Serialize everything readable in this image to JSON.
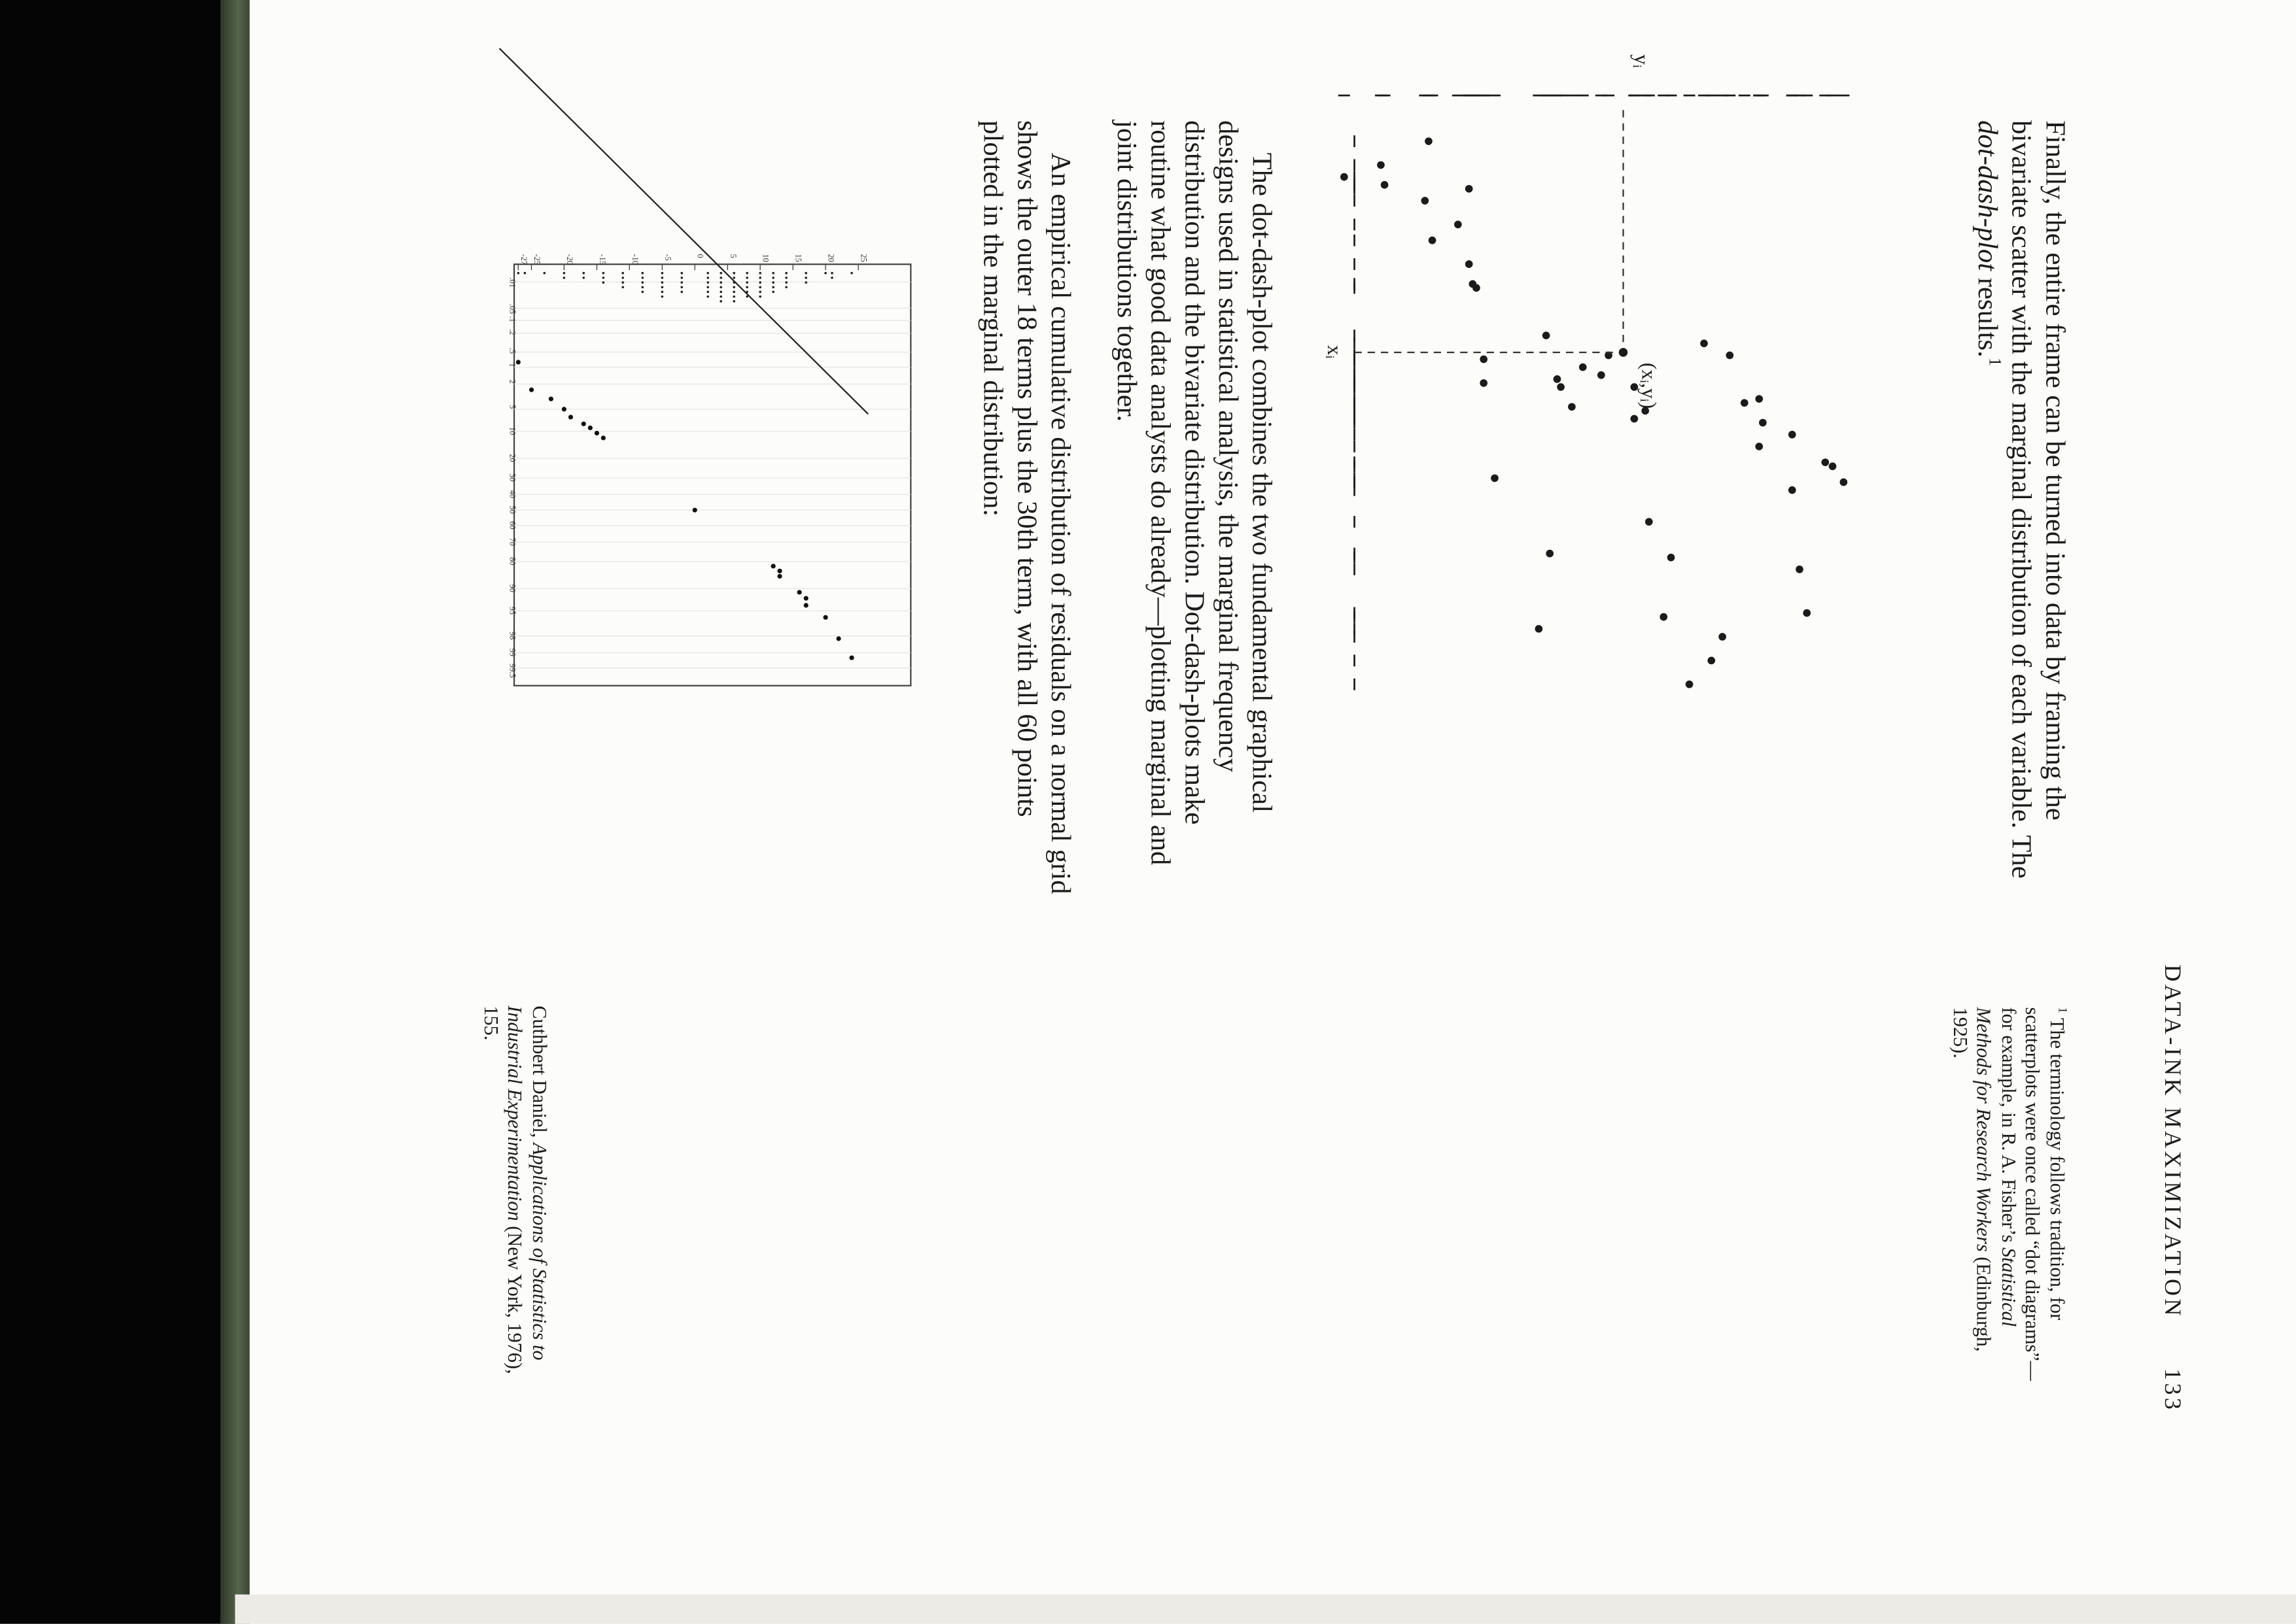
{
  "page": {
    "running_header": "DATA-INK MAXIMIZATION",
    "page_number": "133"
  },
  "intro": {
    "before_italic": "Finally, the entire frame can be turned into data by framing the bivariate scatter with the marginal distribution of each variable. The ",
    "italic": "dot-dash-plot",
    "after_italic": " results.",
    "note_mark": "1"
  },
  "figure_scatter": {
    "point_label": "(xᵢ,yᵢ)",
    "x_label": "xᵢ",
    "y_label": "yᵢ",
    "points_approx": [
      [
        1.2,
        14.8
      ],
      [
        0.6,
        13.5
      ],
      [
        2.1,
        13.6
      ],
      [
        1.8,
        12.4
      ],
      [
        1.7,
        14.7
      ],
      [
        6.1,
        12.0
      ],
      [
        4.2,
        12.3
      ],
      [
        5.5,
        10.3
      ],
      [
        6.3,
        9.3
      ],
      [
        7.3,
        9.6
      ],
      [
        6.5,
        8.8
      ],
      [
        6.8,
        9.9
      ],
      [
        6.6,
        10.0
      ],
      [
        6.0,
        8.6
      ],
      [
        6.8,
        7.9
      ],
      [
        5.7,
        6.0
      ],
      [
        7.4,
        7.6
      ],
      [
        7.6,
        7.9
      ],
      [
        6.0,
        5.3
      ],
      [
        7.2,
        4.9
      ],
      [
        7.1,
        4.5
      ],
      [
        7.7,
        4.4
      ],
      [
        8.0,
        3.6
      ],
      [
        8.3,
        4.5
      ],
      [
        8.7,
        2.7
      ],
      [
        9.2,
        2.2
      ],
      [
        8.8,
        2.5
      ],
      [
        9.4,
        3.6
      ],
      [
        11.1,
        6.9
      ],
      [
        12.6,
        7.1
      ],
      [
        11.4,
        3.4
      ],
      [
        12.5,
        3.2
      ],
      [
        13.7,
        5.8
      ],
      [
        14.3,
        6.4
      ],
      [
        13.1,
        5.5
      ],
      [
        10.2,
        7.5
      ],
      [
        11.0,
        10.2
      ],
      [
        12.9,
        10.5
      ],
      [
        9.1,
        11.7
      ],
      [
        6.7,
        12.0
      ],
      [
        1.5,
        15.8
      ],
      [
        3.1,
        13.4
      ],
      [
        4.3,
        12.2
      ],
      [
        3.7,
        12.4
      ],
      [
        2.7,
        12.7
      ]
    ]
  },
  "paragraph_2": {
    "text": "The dot-dash-plot combines the two fundamental graphical designs used in statistical analysis, the marginal frequency distribution and the bivariate distribution. Dot-dash-plots make routine what good data analysts do already—plotting marginal and joint distributions together."
  },
  "paragraph_3": {
    "text": "An empirical cumulative distribution of residuals on a normal grid shows the outer 18 terms plus the 30th term, with all 60 points plotted in the marginal distribution:"
  },
  "footnote": {
    "mark": "1",
    "before_italic": "The terminology follows tradition, for scatterplots were once called “dot diagrams”—for example, in R. A. Fisher’s ",
    "italic": "Statistical Methods for Research Workers",
    "after_italic": " (Edinburgh, 1925)."
  },
  "citation": {
    "author": "Cuthbert Daniel, ",
    "italic": "Applications of Statistics to Industrial Experimentation",
    "rest": " (New York, 1976), 155."
  },
  "figure_normal_grid": {
    "y_ticks": [
      "25",
      "20",
      "15",
      "10",
      "5",
      "0",
      "-5",
      "-10",
      "-15",
      "-20",
      "-25",
      "-27"
    ],
    "x_ticks": [
      ".01",
      ".05",
      ".1",
      ".2",
      ".5",
      "1",
      "2",
      "5",
      "10",
      "20",
      "30",
      "40",
      "50",
      "60",
      "70",
      "80",
      "90",
      "95",
      "98",
      "99",
      "99.5"
    ],
    "terms_approx": [
      {
        "p": 0.8,
        "residual": -27
      },
      {
        "p": 2.5,
        "residual": -25
      },
      {
        "p": 3.5,
        "residual": -22
      },
      {
        "p": 5.0,
        "residual": -20
      },
      {
        "p": 6.5,
        "residual": -19
      },
      {
        "p": 8.0,
        "residual": -17
      },
      {
        "p": 9.0,
        "residual": -16
      },
      {
        "p": 10.5,
        "residual": -15
      },
      {
        "p": 12.0,
        "residual": -14
      },
      {
        "p": 50,
        "residual": 0
      },
      {
        "p": 82,
        "residual": 12
      },
      {
        "p": 84,
        "residual": 13
      },
      {
        "p": 86,
        "residual": 13
      },
      {
        "p": 91,
        "residual": 16
      },
      {
        "p": 92.5,
        "residual": 17
      },
      {
        "p": 94,
        "residual": 17
      },
      {
        "p": 96,
        "residual": 20
      },
      {
        "p": 98.2,
        "residual": 22
      },
      {
        "p": 99.2,
        "residual": 24
      }
    ]
  }
}
